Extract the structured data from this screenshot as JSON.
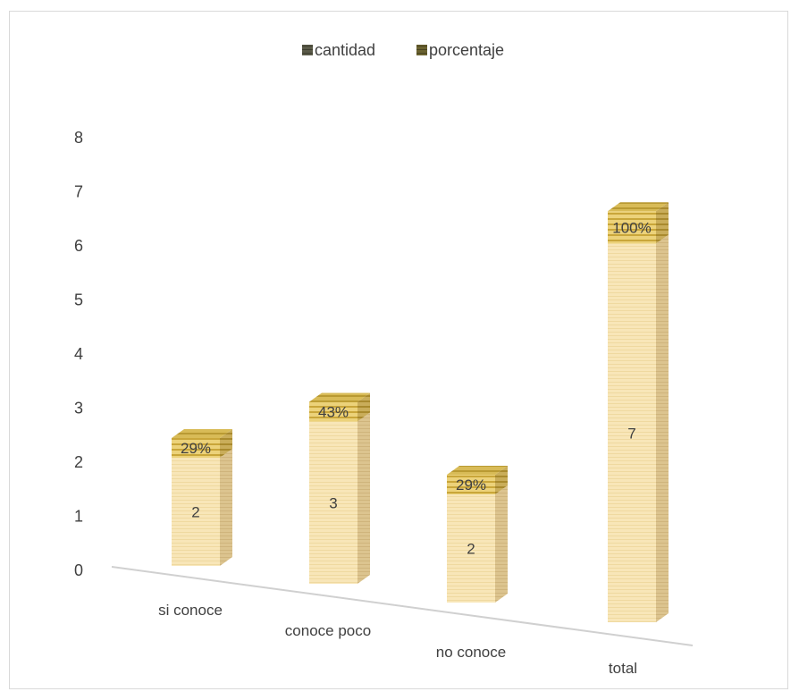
{
  "chart_data": {
    "type": "bar",
    "stacked": true,
    "three_d": true,
    "categories": [
      "si conoce",
      "conoce poco",
      "no conoce",
      "total"
    ],
    "series": [
      {
        "name": "cantidad",
        "values": [
          2,
          3,
          2,
          7
        ],
        "labels": [
          "2",
          "3",
          "2",
          "7"
        ],
        "color": "#f7e3b0",
        "legend_swatch_color": "#4a4a3a"
      },
      {
        "name": "porcentaje",
        "values": [
          0.29,
          0.43,
          0.29,
          1.0
        ],
        "labels": [
          "29%",
          "43%",
          "29%",
          "100%"
        ],
        "color": "#e2c25a",
        "legend_swatch_color": "#5a5530"
      }
    ],
    "yticks": [
      "0",
      "1",
      "2",
      "3",
      "4",
      "5",
      "6",
      "7",
      "8"
    ],
    "ylim": [
      0,
      8
    ],
    "legend_position": "top",
    "grid": false,
    "title": "",
    "xlabel": "",
    "ylabel": ""
  }
}
